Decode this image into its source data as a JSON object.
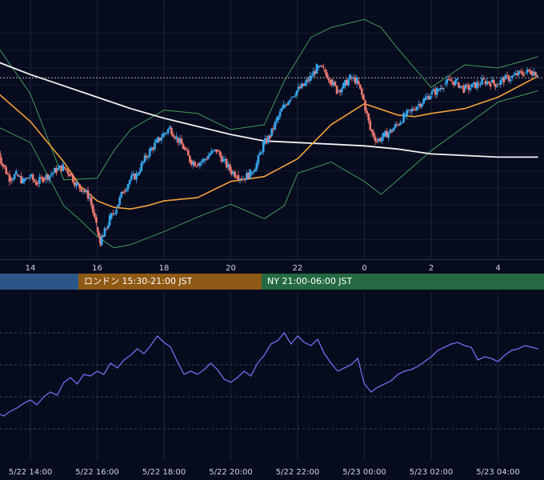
{
  "chart_data": [
    {
      "type": "candlestick",
      "x_ticks": [
        "14",
        "16",
        "18",
        "20",
        "22",
        "0",
        "2",
        "4"
      ],
      "grid": true,
      "colors": {
        "up": "#38a8ee",
        "down": "#f07a72",
        "sma_orange": "#f3a13b",
        "sma_white": "#f2f2f2",
        "bollinger": "#3f9b57",
        "reference_line": "#e8e8e8"
      },
      "sma_white": [
        [
          13.0,
          0.82
        ],
        [
          14.0,
          0.74
        ],
        [
          15.0,
          0.67
        ],
        [
          16.0,
          0.6
        ],
        [
          17.0,
          0.53
        ],
        [
          18.0,
          0.47
        ],
        [
          19.0,
          0.42
        ],
        [
          20.0,
          0.37
        ],
        [
          21.0,
          0.33
        ],
        [
          22.0,
          0.32
        ],
        [
          23.0,
          0.31
        ],
        [
          0.0,
          0.3
        ],
        [
          1.0,
          0.28
        ],
        [
          2.0,
          0.25
        ],
        [
          3.0,
          0.24
        ],
        [
          4.0,
          0.23
        ],
        [
          5.2,
          0.23
        ]
      ],
      "sma_orange": [
        [
          13.0,
          0.63
        ],
        [
          14.0,
          0.45
        ],
        [
          15.0,
          0.2
        ],
        [
          15.5,
          0.05
        ],
        [
          16.0,
          -0.04
        ],
        [
          16.5,
          -0.08
        ],
        [
          17.0,
          -0.09
        ],
        [
          17.5,
          -0.07
        ],
        [
          18.0,
          -0.04
        ],
        [
          19.0,
          -0.02
        ],
        [
          20.0,
          0.08
        ],
        [
          21.0,
          0.11
        ],
        [
          22.0,
          0.22
        ],
        [
          23.0,
          0.43
        ],
        [
          0.0,
          0.56
        ],
        [
          1.0,
          0.49
        ],
        [
          1.5,
          0.48
        ],
        [
          2.0,
          0.5
        ],
        [
          3.0,
          0.53
        ],
        [
          4.0,
          0.6
        ],
        [
          5.2,
          0.73
        ]
      ],
      "bollinger_upper": [
        [
          13.0,
          0.92
        ],
        [
          14.0,
          0.62
        ],
        [
          15.0,
          0.09
        ],
        [
          16.0,
          0.1
        ],
        [
          16.5,
          0.27
        ],
        [
          17.0,
          0.4
        ],
        [
          18.0,
          0.52
        ],
        [
          19.0,
          0.5
        ],
        [
          20.0,
          0.4
        ],
        [
          21.0,
          0.43
        ],
        [
          21.6,
          0.7
        ],
        [
          22.4,
          0.97
        ],
        [
          23.0,
          1.03
        ],
        [
          0.0,
          1.08
        ],
        [
          0.5,
          1.03
        ],
        [
          1.0,
          0.9
        ],
        [
          2.0,
          0.66
        ],
        [
          3.0,
          0.8
        ],
        [
          4.0,
          0.78
        ],
        [
          5.2,
          0.85
        ]
      ],
      "bollinger_lower": [
        [
          13.0,
          0.42
        ],
        [
          14.0,
          0.32
        ],
        [
          15.0,
          -0.07
        ],
        [
          15.5,
          -0.16
        ],
        [
          16.0,
          -0.26
        ],
        [
          16.5,
          -0.33
        ],
        [
          17.0,
          -0.31
        ],
        [
          18.0,
          -0.23
        ],
        [
          19.0,
          -0.14
        ],
        [
          20.0,
          -0.06
        ],
        [
          21.0,
          -0.15
        ],
        [
          21.6,
          -0.07
        ],
        [
          22.0,
          0.13
        ],
        [
          23.0,
          0.2
        ],
        [
          0.0,
          0.08
        ],
        [
          0.5,
          0.0
        ],
        [
          1.0,
          0.09
        ],
        [
          2.0,
          0.27
        ],
        [
          3.0,
          0.42
        ],
        [
          4.0,
          0.57
        ],
        [
          5.2,
          0.64
        ]
      ],
      "close": [
        [
          13.0,
          0.3
        ],
        [
          13.2,
          0.18
        ],
        [
          13.4,
          0.1
        ],
        [
          13.6,
          0.12
        ],
        [
          13.8,
          0.08
        ],
        [
          14.0,
          0.11
        ],
        [
          14.2,
          0.07
        ],
        [
          14.4,
          0.1
        ],
        [
          14.6,
          0.12
        ],
        [
          14.8,
          0.15
        ],
        [
          15.0,
          0.17
        ],
        [
          15.2,
          0.13
        ],
        [
          15.4,
          0.06
        ],
        [
          15.6,
          0.03
        ],
        [
          15.8,
          -0.02
        ],
        [
          16.0,
          -0.2
        ],
        [
          16.1,
          -0.3
        ],
        [
          16.2,
          -0.26
        ],
        [
          16.4,
          -0.15
        ],
        [
          16.6,
          -0.08
        ],
        [
          16.8,
          0.02
        ],
        [
          17.0,
          0.09
        ],
        [
          17.2,
          0.12
        ],
        [
          17.4,
          0.2
        ],
        [
          17.6,
          0.27
        ],
        [
          17.8,
          0.32
        ],
        [
          18.0,
          0.37
        ],
        [
          18.2,
          0.41
        ],
        [
          18.4,
          0.35
        ],
        [
          18.6,
          0.29
        ],
        [
          18.8,
          0.21
        ],
        [
          19.0,
          0.19
        ],
        [
          19.2,
          0.21
        ],
        [
          19.4,
          0.25
        ],
        [
          19.6,
          0.27
        ],
        [
          19.8,
          0.21
        ],
        [
          20.0,
          0.15
        ],
        [
          20.2,
          0.12
        ],
        [
          20.4,
          0.1
        ],
        [
          20.6,
          0.13
        ],
        [
          20.8,
          0.19
        ],
        [
          21.0,
          0.31
        ],
        [
          21.2,
          0.36
        ],
        [
          21.4,
          0.46
        ],
        [
          21.6,
          0.54
        ],
        [
          21.8,
          0.6
        ],
        [
          22.0,
          0.64
        ],
        [
          22.2,
          0.67
        ],
        [
          22.4,
          0.72
        ],
        [
          22.6,
          0.78
        ],
        [
          22.8,
          0.77
        ],
        [
          23.0,
          0.71
        ],
        [
          23.2,
          0.64
        ],
        [
          23.4,
          0.67
        ],
        [
          23.6,
          0.72
        ],
        [
          23.8,
          0.7
        ],
        [
          0.0,
          0.58
        ],
        [
          0.2,
          0.4
        ],
        [
          0.4,
          0.33
        ],
        [
          0.6,
          0.36
        ],
        [
          0.8,
          0.39
        ],
        [
          1.0,
          0.43
        ],
        [
          1.2,
          0.48
        ],
        [
          1.4,
          0.51
        ],
        [
          1.6,
          0.55
        ],
        [
          1.8,
          0.58
        ],
        [
          2.0,
          0.62
        ],
        [
          2.2,
          0.64
        ],
        [
          2.4,
          0.68
        ],
        [
          2.6,
          0.7
        ],
        [
          2.8,
          0.69
        ],
        [
          3.0,
          0.65
        ],
        [
          3.2,
          0.66
        ],
        [
          3.4,
          0.68
        ],
        [
          3.6,
          0.7
        ],
        [
          3.8,
          0.69
        ],
        [
          4.0,
          0.68
        ],
        [
          4.2,
          0.71
        ],
        [
          4.4,
          0.72
        ],
        [
          4.6,
          0.74
        ],
        [
          4.8,
          0.75
        ],
        [
          5.0,
          0.76
        ],
        [
          5.2,
          0.75
        ]
      ],
      "reference_line": 0.72,
      "y_range": [
        -0.4,
        1.2
      ]
    },
    {
      "type": "line",
      "x_ticks": [
        "5/22 14:00",
        "5/22 16:00",
        "5/22 18:00",
        "5/22 20:00",
        "5/22 22:00",
        "5/23 00:00",
        "5/23 02:00",
        "5/23 04:00"
      ],
      "grid": true,
      "color": "#6c71ee",
      "x_range": [
        13.0,
        29.2
      ],
      "y_range": [
        0,
        100
      ],
      "points": [
        [
          13.0,
          30
        ],
        [
          13.2,
          28
        ],
        [
          13.4,
          31
        ],
        [
          13.6,
          33
        ],
        [
          13.8,
          36
        ],
        [
          14.0,
          38
        ],
        [
          14.2,
          35
        ],
        [
          14.4,
          40
        ],
        [
          14.6,
          43
        ],
        [
          14.8,
          41
        ],
        [
          15.0,
          49
        ],
        [
          15.2,
          52
        ],
        [
          15.4,
          48
        ],
        [
          15.6,
          54
        ],
        [
          15.8,
          53
        ],
        [
          16.0,
          56
        ],
        [
          16.2,
          54
        ],
        [
          16.4,
          61
        ],
        [
          16.6,
          58
        ],
        [
          16.8,
          63
        ],
        [
          17.0,
          66
        ],
        [
          17.2,
          70
        ],
        [
          17.4,
          67
        ],
        [
          17.6,
          72
        ],
        [
          17.8,
          78
        ],
        [
          18.0,
          74
        ],
        [
          18.2,
          71
        ],
        [
          18.4,
          62
        ],
        [
          18.6,
          54
        ],
        [
          18.8,
          56
        ],
        [
          19.0,
          54
        ],
        [
          19.2,
          57
        ],
        [
          19.4,
          61
        ],
        [
          19.6,
          57
        ],
        [
          19.8,
          51
        ],
        [
          20.0,
          49
        ],
        [
          20.2,
          52
        ],
        [
          20.4,
          56
        ],
        [
          20.6,
          53
        ],
        [
          20.8,
          61
        ],
        [
          21.0,
          66
        ],
        [
          21.2,
          73
        ],
        [
          21.4,
          75
        ],
        [
          21.6,
          80
        ],
        [
          21.8,
          73
        ],
        [
          22.0,
          78
        ],
        [
          22.2,
          74
        ],
        [
          22.4,
          72
        ],
        [
          22.6,
          76
        ],
        [
          22.8,
          67
        ],
        [
          23.0,
          61
        ],
        [
          23.2,
          56
        ],
        [
          23.4,
          58
        ],
        [
          23.6,
          60
        ],
        [
          23.8,
          64
        ],
        [
          24.0,
          48
        ],
        [
          24.2,
          43
        ],
        [
          24.4,
          46
        ],
        [
          24.6,
          48
        ],
        [
          24.8,
          50
        ],
        [
          25.0,
          54
        ],
        [
          25.2,
          56
        ],
        [
          25.4,
          57
        ],
        [
          25.6,
          59
        ],
        [
          25.8,
          62
        ],
        [
          26.0,
          65
        ],
        [
          26.2,
          69
        ],
        [
          26.4,
          71
        ],
        [
          26.6,
          73
        ],
        [
          26.8,
          74
        ],
        [
          27.0,
          72
        ],
        [
          27.2,
          71
        ],
        [
          27.4,
          63
        ],
        [
          27.6,
          65
        ],
        [
          27.8,
          64
        ],
        [
          28.0,
          62
        ],
        [
          28.2,
          66
        ],
        [
          28.4,
          69
        ],
        [
          28.6,
          70
        ],
        [
          28.8,
          72
        ],
        [
          29.0,
          71
        ],
        [
          29.2,
          70
        ]
      ]
    }
  ],
  "sessions": [
    {
      "label": "",
      "color": "#2c5689"
    },
    {
      "label": "ロンドン 15:30-21:00 JST",
      "color": "#8f5a15"
    },
    {
      "label": "NY 21:00-06:00 JST",
      "color": "#246942"
    }
  ]
}
